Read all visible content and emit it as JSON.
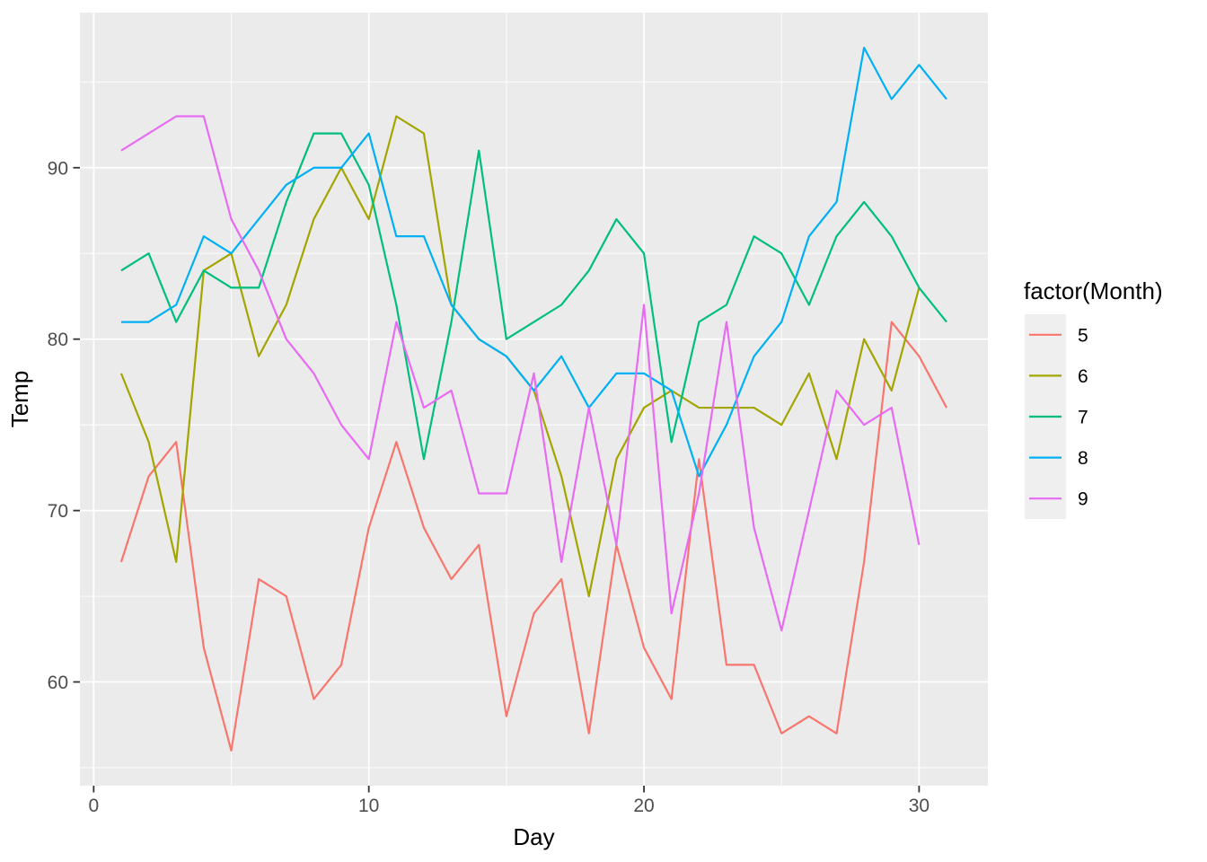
{
  "figure": {
    "background": "#FFFFFF",
    "panel_background": "#EBEBEB",
    "grid_color": "#FFFFFF",
    "tick_mark_color": "#333333",
    "tick_label_color": "#4D4D4D",
    "title_color": "#000000"
  },
  "legend": {
    "title": "factor(Month)",
    "key_fill": "#EFEFEF",
    "position": "right",
    "entries": [
      {
        "label": "5",
        "color": "#F8766D"
      },
      {
        "label": "6",
        "color": "#A3A500"
      },
      {
        "label": "7",
        "color": "#00BF7D"
      },
      {
        "label": "8",
        "color": "#00B0F6"
      },
      {
        "label": "9",
        "color": "#E76BF3"
      }
    ]
  },
  "chart_data": {
    "type": "line",
    "title": "",
    "xlabel": "Day",
    "ylabel": "Temp",
    "legend_title": "factor(Month)",
    "legend_position": "right",
    "grid": "major+minor",
    "xlim": [
      -0.5,
      32.5
    ],
    "ylim": [
      53.95,
      99.05
    ],
    "x_major_ticks": [
      0,
      10,
      20,
      30
    ],
    "x_minor_ticks": [
      5,
      15,
      25
    ],
    "y_major_ticks": [
      60,
      70,
      80,
      90
    ],
    "y_minor_ticks": [
      55,
      65,
      75,
      85,
      95
    ],
    "x_start": 1,
    "x_description": "Day of month; x value = index + 1 within each series",
    "series": [
      {
        "name": "5",
        "color": "#F8766D",
        "values": [
          67,
          72,
          74,
          62,
          56,
          66,
          65,
          59,
          61,
          69,
          74,
          69,
          66,
          68,
          58,
          64,
          66,
          57,
          68,
          62,
          59,
          73,
          61,
          61,
          57,
          58,
          57,
          67,
          81,
          79,
          76
        ]
      },
      {
        "name": "6",
        "color": "#A3A500",
        "values": [
          78,
          74,
          67,
          84,
          85,
          79,
          82,
          87,
          90,
          87,
          93,
          92,
          82,
          80,
          79,
          77,
          72,
          65,
          73,
          76,
          77,
          76,
          76,
          76,
          75,
          78,
          73,
          80,
          77,
          83
        ]
      },
      {
        "name": "7",
        "color": "#00BF7D",
        "values": [
          84,
          85,
          81,
          84,
          83,
          83,
          88,
          92,
          92,
          89,
          82,
          73,
          81,
          91,
          80,
          81,
          82,
          84,
          87,
          85,
          74,
          81,
          82,
          86,
          85,
          82,
          86,
          88,
          86,
          83,
          81
        ]
      },
      {
        "name": "8",
        "color": "#00B0F6",
        "values": [
          81,
          81,
          82,
          86,
          85,
          87,
          89,
          90,
          90,
          92,
          86,
          86,
          82,
          80,
          79,
          77,
          79,
          76,
          78,
          78,
          77,
          72,
          75,
          79,
          81,
          86,
          88,
          97,
          94,
          96,
          94
        ]
      },
      {
        "name": "9",
        "color": "#E76BF3",
        "values": [
          91,
          92,
          93,
          93,
          87,
          84,
          80,
          78,
          75,
          73,
          81,
          76,
          77,
          71,
          71,
          78,
          67,
          76,
          68,
          82,
          64,
          71,
          81,
          69,
          63,
          70,
          77,
          75,
          76,
          68
        ]
      }
    ]
  }
}
